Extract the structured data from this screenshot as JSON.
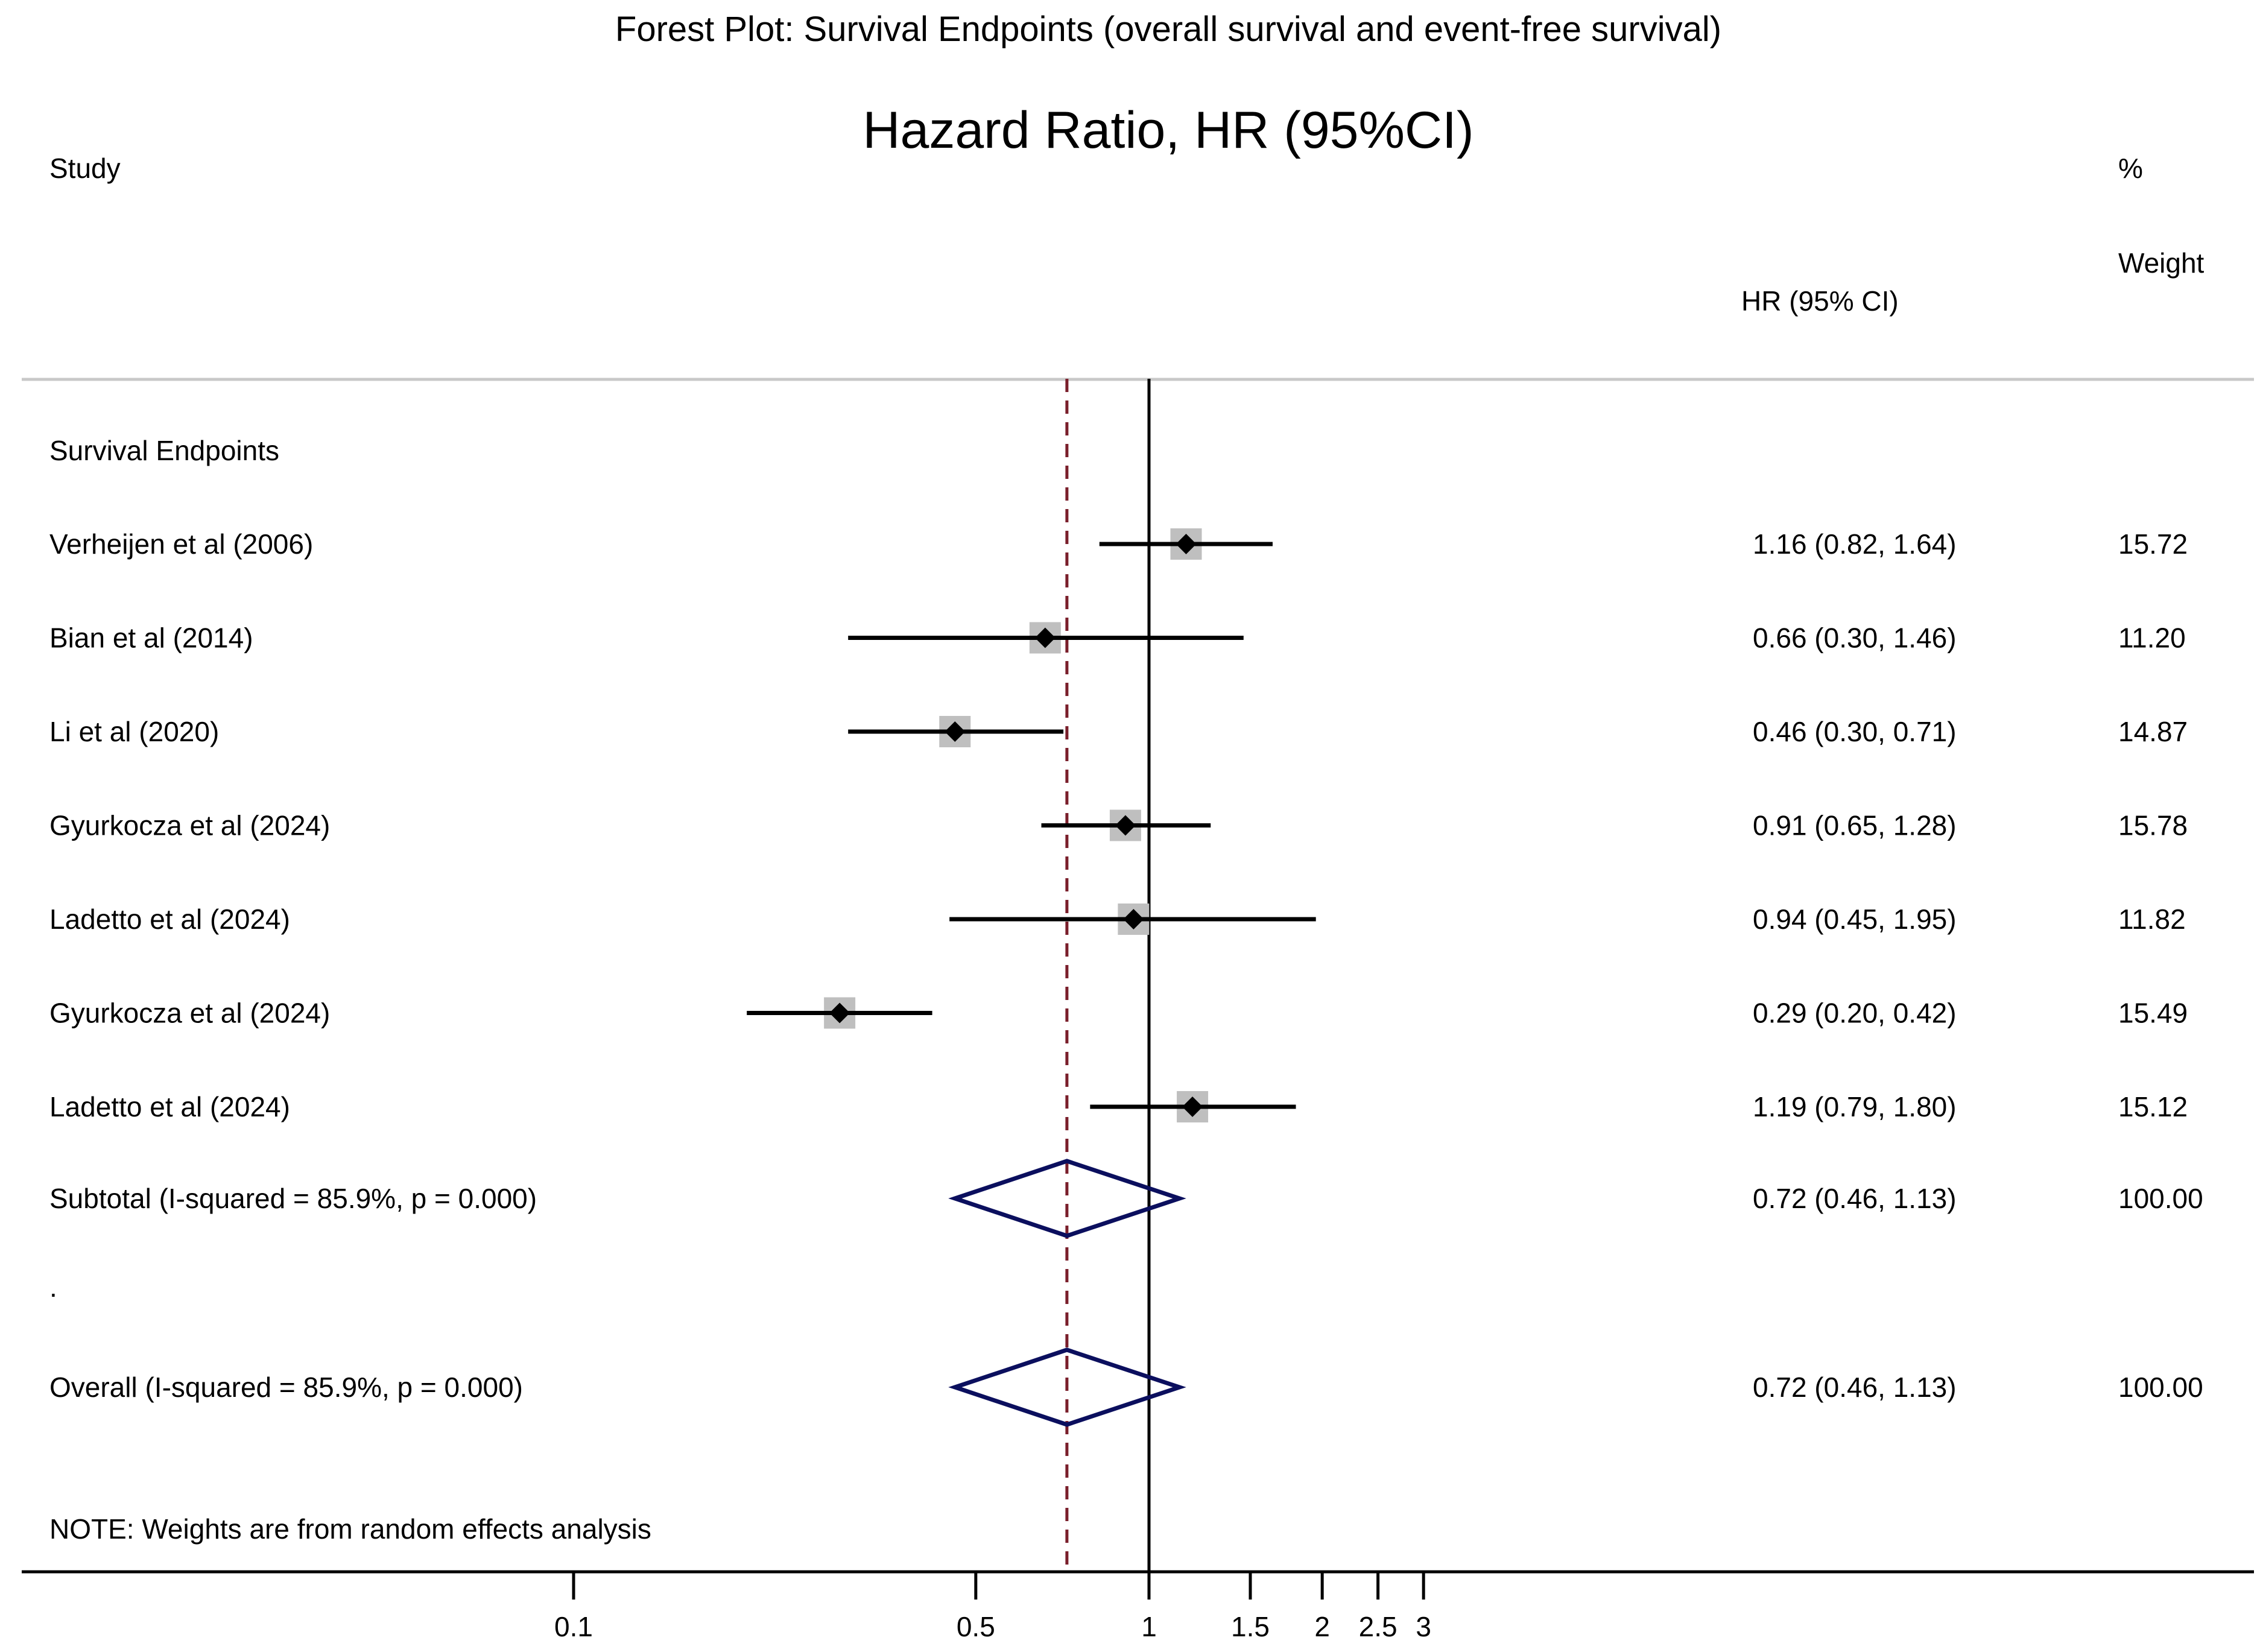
{
  "chart_data": {
    "type": "forest",
    "title": "Forest Plot: Survival Endpoints (overall survival and event-free survival)",
    "subtitle": "Hazard Ratio, HR (95%CI)",
    "headers": {
      "study": "Study",
      "hr": "HR (95% CI)",
      "weight_pct": "%",
      "weight_word": "Weight"
    },
    "group_label": "Survival Endpoints",
    "scale": "log",
    "xlim": [
      0.1,
      3
    ],
    "ticks": [
      {
        "value": 0.1,
        "label": "0.1"
      },
      {
        "value": 0.5,
        "label": "0.5"
      },
      {
        "value": 1,
        "label": "1"
      },
      {
        "value": 1.5,
        "label": "1.5"
      },
      {
        "value": 2,
        "label": "2"
      },
      {
        "value": 2.5,
        "label": "2.5"
      },
      {
        "value": 3,
        "label": "3"
      }
    ],
    "null_line": 1,
    "pooled_line": 0.72,
    "studies": [
      {
        "name": "Verheijen et al (2006)",
        "hr": 1.16,
        "lo": 0.82,
        "hi": 1.64,
        "hr_text": "1.16 (0.82, 1.64)",
        "weight": "15.72"
      },
      {
        "name": "Bian et al (2014)",
        "hr": 0.66,
        "lo": 0.3,
        "hi": 1.46,
        "hr_text": "0.66 (0.30, 1.46)",
        "weight": "11.20"
      },
      {
        "name": "Li et al (2020)",
        "hr": 0.46,
        "lo": 0.3,
        "hi": 0.71,
        "hr_text": "0.46 (0.30, 0.71)",
        "weight": "14.87"
      },
      {
        "name": "Gyurkocza et al (2024)",
        "hr": 0.91,
        "lo": 0.65,
        "hi": 1.28,
        "hr_text": "0.91 (0.65, 1.28)",
        "weight": "15.78"
      },
      {
        "name": "Ladetto et al (2024)",
        "hr": 0.94,
        "lo": 0.45,
        "hi": 1.95,
        "hr_text": "0.94 (0.45, 1.95)",
        "weight": "11.82"
      },
      {
        "name": "Gyurkocza et al (2024)",
        "hr": 0.29,
        "lo": 0.2,
        "hi": 0.42,
        "hr_text": "0.29 (0.20, 0.42)",
        "weight": "15.49"
      },
      {
        "name": "Ladetto et al (2024)",
        "hr": 1.19,
        "lo": 0.79,
        "hi": 1.8,
        "hr_text": "1.19 (0.79, 1.80)",
        "weight": "15.12"
      }
    ],
    "subtotal": {
      "label": "Subtotal  (I-squared = 85.9%, p = 0.000)",
      "hr": 0.72,
      "lo": 0.46,
      "hi": 1.13,
      "hr_text": "0.72 (0.46, 1.13)",
      "weight": "100.00"
    },
    "separator": ".",
    "overall": {
      "label": "Overall  (I-squared = 85.9%, p = 0.000)",
      "hr": 0.72,
      "lo": 0.46,
      "hi": 1.13,
      "hr_text": "0.72 (0.46, 1.13)",
      "weight": "100.00"
    },
    "note": "NOTE: Weights are from random effects analysis",
    "colors": {
      "text": "#000000",
      "ci_line": "#000000",
      "marker": "#000000",
      "weight_box": "#bfbfbf",
      "diamond": "#0b0f5e",
      "pooled_line": "#7a1f2b",
      "null_line": "#000000",
      "rule": "#c8c8c8"
    }
  }
}
